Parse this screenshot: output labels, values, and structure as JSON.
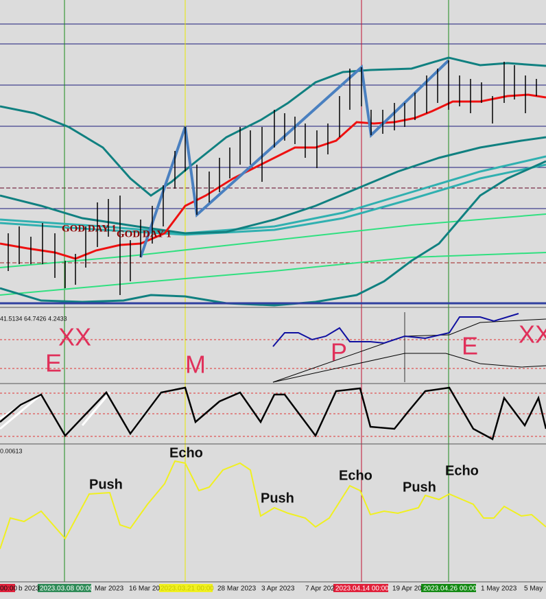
{
  "main_pane": {
    "annotations": [
      "GOD DAY 1",
      "GOD DAY 1"
    ]
  },
  "pane2": {
    "values_text": "41.5134 64.7426 4.2433",
    "annotations": [
      "XX",
      "E",
      "M",
      "P",
      "E",
      "XX"
    ]
  },
  "pane4": {
    "values_text": "0.00613",
    "annotations": [
      "Echo",
      "Push",
      "Push",
      "Echo",
      "Push",
      "Echo"
    ]
  },
  "time_axis": {
    "labels": [
      "00:00",
      "b 2023",
      "2023.03.08 00:00",
      "Mar 2023",
      "16 Mar 20",
      "2023.03.21 00:00",
      "28 Mar 2023",
      "3 Apr 2023",
      "7 Apr 202",
      "2023.04.14 00:00",
      "19 Apr 20",
      "2023.04.26 00:00",
      "1 May 2023",
      "5 May"
    ]
  }
}
